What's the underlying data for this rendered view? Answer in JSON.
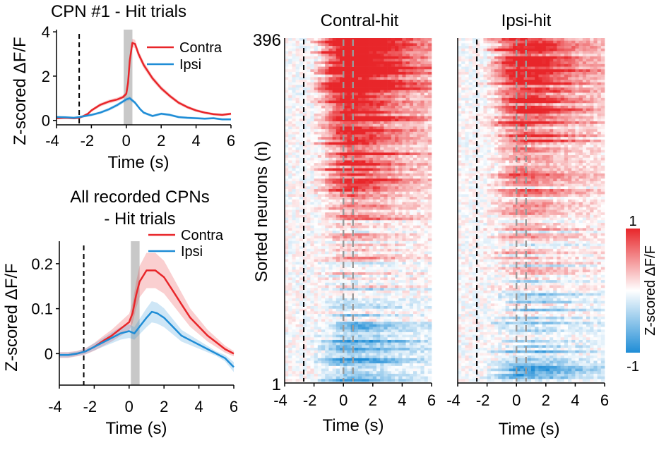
{
  "chart_data": [
    {
      "type": "line",
      "title": "CPN #1 - Hit trials",
      "xlabel": "Time (s)",
      "ylabel": "Z-scored ΔF/F",
      "xlim": [
        -4,
        6
      ],
      "ylim": [
        -0.2,
        4.1
      ],
      "xticks": [
        -4,
        -2,
        0,
        2,
        4,
        6
      ],
      "xtick_labels": [
        "-4",
        "-2",
        "0",
        "2",
        "4",
        "6"
      ],
      "yticks": [
        0,
        2,
        4
      ],
      "ytick_labels": [
        "0",
        "2",
        "4"
      ],
      "vline_dashed": -2.7,
      "shaded_window": [
        -0.15,
        0.35
      ],
      "legend_position": "top-right",
      "series": [
        {
          "name": "Contra",
          "color": "#e8262a",
          "x": [
            -4,
            -3.5,
            -3,
            -2.7,
            -2.5,
            -2.2,
            -2,
            -1.5,
            -1,
            -0.5,
            -0.2,
            0,
            0.1,
            0.2,
            0.35,
            0.5,
            0.7,
            1,
            1.5,
            2,
            2.5,
            3,
            3.5,
            4,
            4.5,
            5,
            5.5,
            6
          ],
          "y": [
            0.1,
            0.12,
            0.1,
            0.12,
            0.18,
            0.3,
            0.45,
            0.7,
            0.85,
            0.95,
            1.05,
            1.2,
            1.7,
            2.7,
            3.5,
            3.45,
            3.0,
            2.5,
            1.9,
            1.45,
            1.1,
            0.8,
            0.6,
            0.45,
            0.35,
            0.28,
            0.25,
            0.3
          ]
        },
        {
          "name": "Ipsi",
          "color": "#1f8dd6",
          "x": [
            -4,
            -3.5,
            -3,
            -2.7,
            -2.5,
            -2,
            -1.5,
            -1,
            -0.5,
            0,
            0.2,
            0.5,
            0.8,
            1,
            1.5,
            2,
            2.5,
            3,
            3.5,
            4,
            4.5,
            5,
            5.5,
            6
          ],
          "y": [
            0.15,
            0.14,
            0.12,
            0.15,
            0.18,
            0.25,
            0.35,
            0.5,
            0.7,
            0.95,
            1.0,
            0.8,
            0.5,
            0.35,
            0.2,
            0.3,
            0.25,
            0.15,
            0.12,
            0.1,
            0.08,
            0.1,
            0.05,
            0.05
          ]
        }
      ]
    },
    {
      "type": "line",
      "title": "All recorded CPNs\n- Hit trials",
      "xlabel": "Time (s)",
      "ylabel": "Z-scored ΔF/F",
      "xlim": [
        -4,
        6
      ],
      "ylim": [
        -0.07,
        0.25
      ],
      "xticks": [
        -4,
        -2,
        0,
        2,
        4,
        6
      ],
      "xtick_labels": [
        "-4",
        "-2",
        "0",
        "2",
        "4",
        "6"
      ],
      "yticks": [
        0,
        0.1,
        0.2
      ],
      "ytick_labels": [
        "0",
        "0.1",
        "0.2"
      ],
      "vline_dashed": -2.6,
      "shaded_window": [
        0.1,
        0.6
      ],
      "legend_position": "top-right",
      "series": [
        {
          "name": "Contra",
          "color": "#e8262a",
          "x": [
            -4,
            -3.5,
            -3,
            -2.5,
            -2,
            -1.5,
            -1,
            -0.5,
            0,
            0.2,
            0.4,
            0.6,
            1,
            1.5,
            2,
            2.5,
            3,
            3.5,
            4,
            4.5,
            5,
            5.5,
            6
          ],
          "y": [
            -0.003,
            -0.003,
            0.0,
            0.005,
            0.015,
            0.028,
            0.04,
            0.055,
            0.07,
            0.09,
            0.13,
            0.16,
            0.185,
            0.185,
            0.17,
            0.14,
            0.11,
            0.08,
            0.06,
            0.04,
            0.025,
            0.01,
            0.0
          ]
        },
        {
          "name": "Ipsi",
          "color": "#1f8dd6",
          "x": [
            -4,
            -3.5,
            -3,
            -2.5,
            -2,
            -1.5,
            -1,
            -0.5,
            0,
            0.3,
            0.6,
            1,
            1.3,
            1.6,
            2,
            2.5,
            3,
            3.5,
            4,
            4.5,
            5,
            5.5,
            6
          ],
          "y": [
            -0.003,
            -0.003,
            0.0,
            0.005,
            0.015,
            0.025,
            0.035,
            0.045,
            0.05,
            0.045,
            0.06,
            0.08,
            0.093,
            0.09,
            0.08,
            0.06,
            0.04,
            0.03,
            0.02,
            0.01,
            0.0,
            -0.01,
            -0.03
          ]
        }
      ]
    },
    {
      "type": "heatmap",
      "title": "Contral-hit",
      "xlabel": "Time (s)",
      "ylabel": "Sorted neurons (n)",
      "xlim": [
        -4,
        6
      ],
      "xticks": [
        -4,
        -2,
        0,
        2,
        4,
        6
      ],
      "xtick_labels": [
        "-4",
        "-2",
        "0",
        "2",
        "4",
        "6"
      ],
      "ytick_labels": [
        "396",
        "1"
      ],
      "n_rows": 396,
      "vline_black": -2.7,
      "vlines_gray": [
        0.0,
        0.65
      ]
    },
    {
      "type": "heatmap",
      "title": "Ipsi-hit",
      "xlabel": "Time (s)",
      "ylabel": "",
      "xlim": [
        -4,
        6
      ],
      "xticks": [
        -4,
        -2,
        0,
        2,
        4,
        6
      ],
      "xtick_labels": [
        "-4",
        "-2",
        "0",
        "2",
        "4",
        "6"
      ],
      "n_rows": 396,
      "vline_black": -2.7,
      "vlines_gray": [
        0.0,
        0.65
      ]
    }
  ],
  "colorbar": {
    "label": "Z-scored ΔF/F",
    "max_label": "1",
    "min_label": "-1",
    "colors": [
      "#1f8dd6",
      "#ffffff",
      "#e8262a"
    ]
  }
}
